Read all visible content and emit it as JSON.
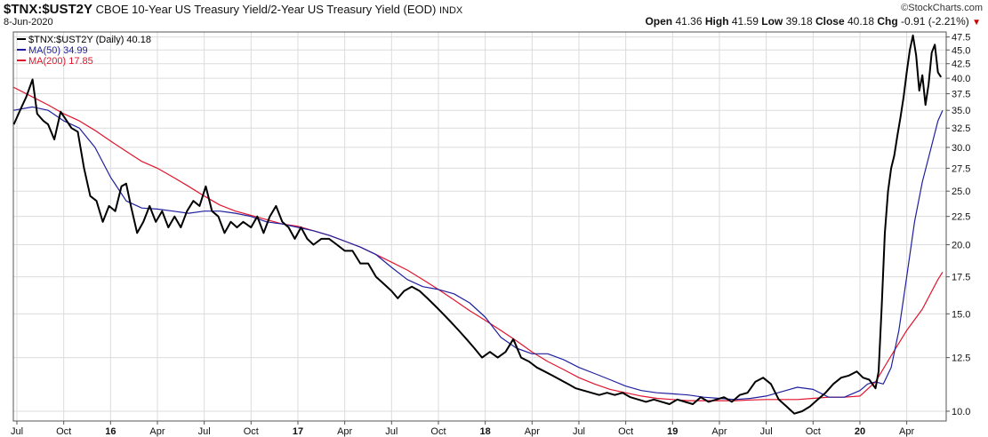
{
  "header": {
    "symbol": "$TNX:$UST2Y",
    "description": "CBOE 10-Year US Treasury Yield/2-Year US Treasury Yield (EOD)",
    "exchange": "INDX",
    "date": "8-Jun-2020",
    "logo": "©StockCharts.com",
    "open_label": "Open",
    "open_value": "41.36",
    "high_label": "High",
    "high_value": "41.59",
    "low_label": "Low",
    "low_value": "39.18",
    "close_label": "Close",
    "close_value": "40.18",
    "chg_label": "Chg",
    "chg_value": "-0.91 (-2.21%)",
    "chg_arrow": "▼"
  },
  "chart_data": {
    "type": "line",
    "title": "CBOE 10-Year US Treasury Yield/2-Year US Treasury Yield (EOD)",
    "y_scale": "log",
    "ylim": [
      9.6,
      48.5
    ],
    "y_ticks": [
      10.0,
      12.5,
      15.0,
      17.5,
      20.0,
      22.5,
      25.0,
      27.5,
      30.0,
      32.5,
      35.0,
      37.5,
      40.0,
      42.5,
      45.0,
      47.5
    ],
    "y_tick_labels": [
      "10.0",
      "12.5",
      "15.0",
      "17.5",
      "20.0",
      "22.5",
      "25.0",
      "27.5",
      "30.0",
      "32.5",
      "35.0",
      "37.5",
      "40.0",
      "42.5",
      "45.0",
      "47.5"
    ],
    "x_range_months": [
      0,
      59.3
    ],
    "x_ticks": [
      {
        "label": "Jul",
        "m": 0,
        "bold": false
      },
      {
        "label": "Oct",
        "m": 3,
        "bold": false
      },
      {
        "label": "16",
        "m": 6,
        "bold": true
      },
      {
        "label": "Apr",
        "m": 9,
        "bold": false
      },
      {
        "label": "Jul",
        "m": 12,
        "bold": false
      },
      {
        "label": "Oct",
        "m": 15,
        "bold": false
      },
      {
        "label": "17",
        "m": 18,
        "bold": true
      },
      {
        "label": "Apr",
        "m": 21,
        "bold": false
      },
      {
        "label": "Jul",
        "m": 24,
        "bold": false
      },
      {
        "label": "Oct",
        "m": 27,
        "bold": false
      },
      {
        "label": "18",
        "m": 30,
        "bold": true
      },
      {
        "label": "Apr",
        "m": 33,
        "bold": false
      },
      {
        "label": "Jul",
        "m": 36,
        "bold": false
      },
      {
        "label": "Oct",
        "m": 39,
        "bold": false
      },
      {
        "label": "19",
        "m": 42,
        "bold": true
      },
      {
        "label": "Apr",
        "m": 45,
        "bold": false
      },
      {
        "label": "Jul",
        "m": 48,
        "bold": false
      },
      {
        "label": "Oct",
        "m": 51,
        "bold": false
      },
      {
        "label": "20",
        "m": 54,
        "bold": true
      },
      {
        "label": "Apr",
        "m": 57,
        "bold": false
      }
    ],
    "grid": true,
    "legend": [
      {
        "label": "$TNX:$UST2Y (Daily) 40.18",
        "color": "#000000"
      },
      {
        "label": "MA(50) 34.99",
        "color": "#1f1f9e"
      },
      {
        "label": "MA(200) 17.85",
        "color": "#e0142d"
      }
    ],
    "series": [
      {
        "name": "$TNX:$UST2Y (Daily)",
        "color": "#000000",
        "x": [
          -0.2,
          0.3,
          0.6,
          1.0,
          1.3,
          1.7,
          2.0,
          2.4,
          2.8,
          3.1,
          3.5,
          3.9,
          4.3,
          4.7,
          5.1,
          5.5,
          5.9,
          6.3,
          6.7,
          7.0,
          7.3,
          7.7,
          8.1,
          8.5,
          8.9,
          9.3,
          9.7,
          10.1,
          10.5,
          10.9,
          11.3,
          11.7,
          12.1,
          12.5,
          12.9,
          13.3,
          13.7,
          14.1,
          14.5,
          15.0,
          15.4,
          15.8,
          16.2,
          16.6,
          17.0,
          17.4,
          17.8,
          18.2,
          18.6,
          19.0,
          19.5,
          20.0,
          20.5,
          21.0,
          21.5,
          22.0,
          22.5,
          23.0,
          23.5,
          24.0,
          24.4,
          24.8,
          25.3,
          25.8,
          26.3,
          26.8,
          27.3,
          27.8,
          28.3,
          28.8,
          29.3,
          29.8,
          30.3,
          30.8,
          31.3,
          31.8,
          32.3,
          32.8,
          33.3,
          33.8,
          34.3,
          34.8,
          35.3,
          35.8,
          36.3,
          36.8,
          37.3,
          37.8,
          38.3,
          38.8,
          39.3,
          39.8,
          40.3,
          40.8,
          41.3,
          41.8,
          42.3,
          42.8,
          43.3,
          43.8,
          44.3,
          44.8,
          45.3,
          45.8,
          46.3,
          46.8,
          47.3,
          47.8,
          48.3,
          48.8,
          49.3,
          49.8,
          50.3,
          50.8,
          51.3,
          51.8,
          52.3,
          52.8,
          53.3,
          53.8,
          54.2,
          54.6,
          55.0,
          55.2,
          55.4,
          55.6,
          55.8,
          56.0,
          56.2,
          56.4,
          56.6,
          56.8,
          57.0,
          57.2,
          57.4,
          57.6,
          57.8,
          58.0,
          58.2,
          58.4,
          58.6,
          58.8,
          59.0,
          59.2
        ],
        "values": [
          33.0,
          35.5,
          37.0,
          39.8,
          34.5,
          33.5,
          33.0,
          31.0,
          34.8,
          33.8,
          32.5,
          32.0,
          27.5,
          24.5,
          24.0,
          22.0,
          23.5,
          23.0,
          25.5,
          25.8,
          23.5,
          21.0,
          22.0,
          23.5,
          22.0,
          23.0,
          21.5,
          22.5,
          21.5,
          23.0,
          24.0,
          23.5,
          25.5,
          23.0,
          22.5,
          21.0,
          22.0,
          21.5,
          22.0,
          21.5,
          22.5,
          21.0,
          22.5,
          23.5,
          22.0,
          21.5,
          20.5,
          21.5,
          20.5,
          20.0,
          20.5,
          20.5,
          20.0,
          19.5,
          19.5,
          18.5,
          18.5,
          17.5,
          17.0,
          16.5,
          16.0,
          16.5,
          16.8,
          16.5,
          16.0,
          15.5,
          15.0,
          14.5,
          14.0,
          13.5,
          13.0,
          12.5,
          12.8,
          12.5,
          12.8,
          13.5,
          12.5,
          12.3,
          12.0,
          11.8,
          11.6,
          11.4,
          11.2,
          11.0,
          10.9,
          10.8,
          10.7,
          10.8,
          10.7,
          10.8,
          10.6,
          10.5,
          10.4,
          10.5,
          10.4,
          10.3,
          10.5,
          10.4,
          10.3,
          10.6,
          10.4,
          10.5,
          10.6,
          10.4,
          10.7,
          10.8,
          11.3,
          11.5,
          11.2,
          10.5,
          10.2,
          9.9,
          10.0,
          10.2,
          10.5,
          10.8,
          11.2,
          11.5,
          11.6,
          11.8,
          11.5,
          11.4,
          11.0,
          11.8,
          15.5,
          21.0,
          25.0,
          27.5,
          29.0,
          31.5,
          34.0,
          37.0,
          41.0,
          45.0,
          47.8,
          44.0,
          38.0,
          40.5,
          35.8,
          39.0,
          44.5,
          46.0,
          41.0,
          40.2
        ]
      },
      {
        "name": "MA(50)",
        "color": "#1f1f9e",
        "x": [
          -0.2,
          1.0,
          2.0,
          3.0,
          4.0,
          5.0,
          6.0,
          7.0,
          8.0,
          9.0,
          10.0,
          11.0,
          12.0,
          13.0,
          14.0,
          15.0,
          16.0,
          17.0,
          18.0,
          19.0,
          20.0,
          21.0,
          22.0,
          23.0,
          24.0,
          25.0,
          26.0,
          27.0,
          28.0,
          29.0,
          30.0,
          31.0,
          32.0,
          33.0,
          34.0,
          35.0,
          36.0,
          37.0,
          38.0,
          39.0,
          40.0,
          41.0,
          42.0,
          43.0,
          44.0,
          45.0,
          46.0,
          47.0,
          48.0,
          49.0,
          50.0,
          51.0,
          52.0,
          53.0,
          54.0,
          54.5,
          55.0,
          55.5,
          56.0,
          56.5,
          57.0,
          57.5,
          58.0,
          58.5,
          59.0,
          59.3
        ],
        "values": [
          35.0,
          35.5,
          35.0,
          33.5,
          32.5,
          30.0,
          26.5,
          24.0,
          23.3,
          23.2,
          23.0,
          22.8,
          23.0,
          23.0,
          22.8,
          22.5,
          22.0,
          21.8,
          21.5,
          21.2,
          20.8,
          20.3,
          19.8,
          19.2,
          18.2,
          17.3,
          16.8,
          16.6,
          16.3,
          15.7,
          14.8,
          13.6,
          13.0,
          12.7,
          12.7,
          12.4,
          12.0,
          11.7,
          11.4,
          11.1,
          10.9,
          10.8,
          10.75,
          10.7,
          10.6,
          10.55,
          10.5,
          10.55,
          10.65,
          10.85,
          11.05,
          10.95,
          10.6,
          10.6,
          10.9,
          11.2,
          11.3,
          11.2,
          12.0,
          14.0,
          17.5,
          22.0,
          26.0,
          29.5,
          33.5,
          34.99
        ]
      },
      {
        "name": "MA(200)",
        "color": "#e0142d",
        "x": [
          -0.2,
          1.0,
          2.0,
          3.0,
          4.0,
          5.0,
          6.0,
          7.0,
          8.0,
          9.0,
          10.0,
          11.0,
          12.0,
          13.0,
          14.0,
          15.0,
          16.0,
          17.0,
          18.0,
          19.0,
          20.0,
          21.0,
          22.0,
          23.0,
          24.0,
          25.0,
          26.0,
          27.0,
          28.0,
          29.0,
          30.0,
          31.0,
          32.0,
          33.0,
          34.0,
          35.0,
          36.0,
          37.0,
          38.0,
          39.0,
          40.0,
          41.0,
          42.0,
          43.0,
          44.0,
          45.0,
          46.0,
          47.0,
          48.0,
          49.0,
          50.0,
          51.0,
          52.0,
          53.0,
          54.0,
          55.0,
          56.0,
          57.0,
          58.0,
          59.0,
          59.3
        ],
        "values": [
          38.5,
          37.0,
          35.8,
          34.5,
          33.5,
          32.2,
          30.8,
          29.5,
          28.3,
          27.5,
          26.5,
          25.5,
          24.5,
          23.6,
          23.0,
          22.6,
          22.2,
          21.8,
          21.6,
          21.2,
          20.8,
          20.3,
          19.8,
          19.2,
          18.6,
          18.0,
          17.3,
          16.6,
          15.9,
          15.2,
          14.6,
          14.0,
          13.4,
          12.8,
          12.3,
          11.9,
          11.5,
          11.2,
          10.95,
          10.8,
          10.65,
          10.55,
          10.5,
          10.45,
          10.45,
          10.45,
          10.45,
          10.48,
          10.5,
          10.5,
          10.5,
          10.55,
          10.6,
          10.6,
          10.65,
          11.3,
          12.6,
          14.0,
          15.3,
          17.3,
          17.85
        ]
      }
    ]
  }
}
